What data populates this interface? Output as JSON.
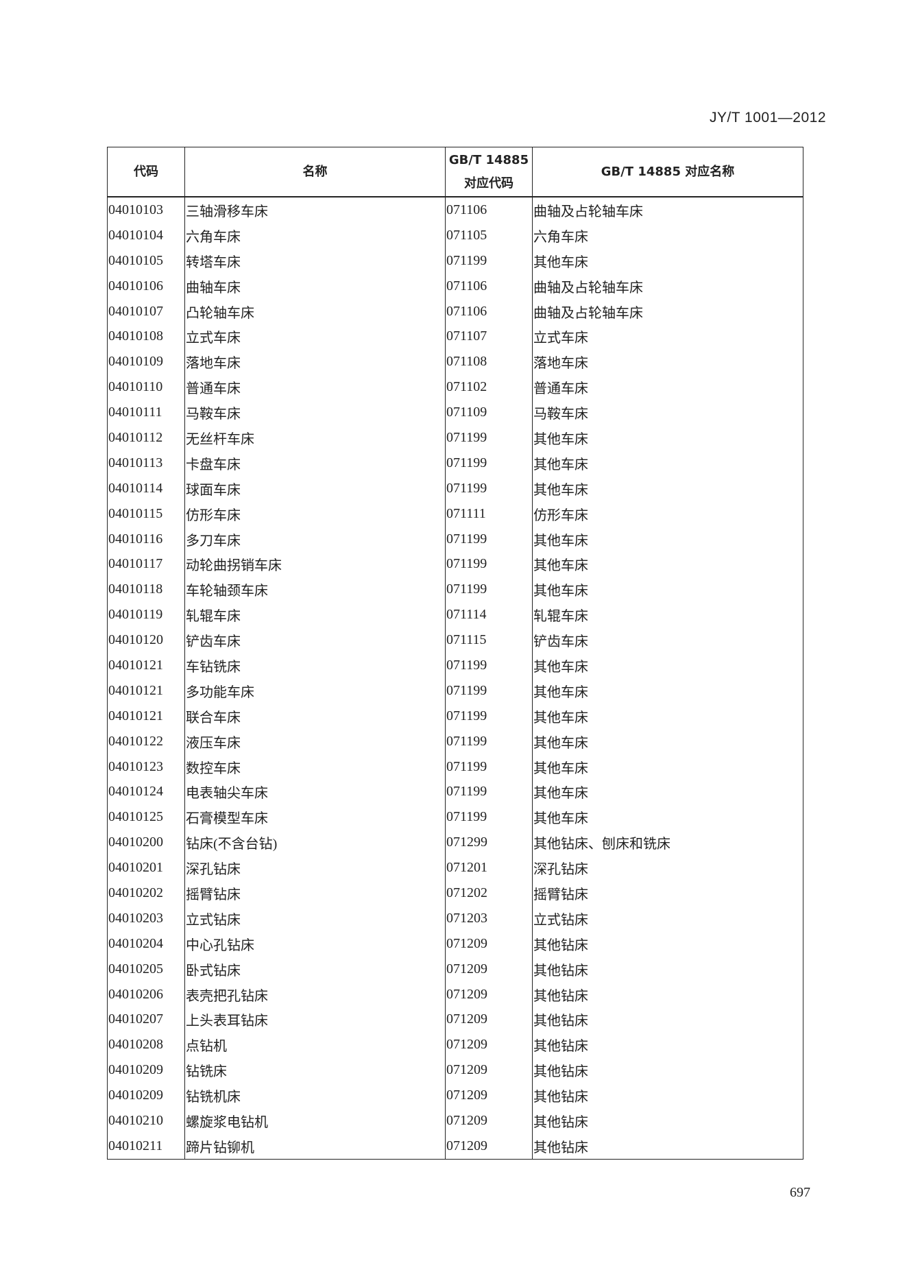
{
  "header": {
    "standard_no": "JY/T 1001—2012"
  },
  "table": {
    "columns": [
      "代码",
      "名称",
      "GB/T 14885\n对应代码",
      "GB/T 14885 对应名称"
    ],
    "column_code_line1": "GB/T 14885",
    "column_code_line2": "对应代码",
    "rows": [
      [
        "04010103",
        "三轴滑移车床",
        "071106",
        "曲轴及占轮轴车床"
      ],
      [
        "04010104",
        "六角车床",
        "071105",
        "六角车床"
      ],
      [
        "04010105",
        "转塔车床",
        "071199",
        "其他车床"
      ],
      [
        "04010106",
        "曲轴车床",
        "071106",
        "曲轴及占轮轴车床"
      ],
      [
        "04010107",
        "凸轮轴车床",
        "071106",
        "曲轴及占轮轴车床"
      ],
      [
        "04010108",
        "立式车床",
        "071107",
        "立式车床"
      ],
      [
        "04010109",
        "落地车床",
        "071108",
        "落地车床"
      ],
      [
        "04010110",
        "普通车床",
        "071102",
        "普通车床"
      ],
      [
        "04010111",
        "马鞍车床",
        "071109",
        "马鞍车床"
      ],
      [
        "04010112",
        "无丝杆车床",
        "071199",
        "其他车床"
      ],
      [
        "04010113",
        "卡盘车床",
        "071199",
        "其他车床"
      ],
      [
        "04010114",
        "球面车床",
        "071199",
        "其他车床"
      ],
      [
        "04010115",
        "仿形车床",
        "071111",
        "仿形车床"
      ],
      [
        "04010116",
        "多刀车床",
        "071199",
        "其他车床"
      ],
      [
        "04010117",
        "动轮曲拐销车床",
        "071199",
        "其他车床"
      ],
      [
        "04010118",
        "车轮轴颈车床",
        "071199",
        "其他车床"
      ],
      [
        "04010119",
        "轧辊车床",
        "071114",
        "轧辊车床"
      ],
      [
        "04010120",
        "铲齿车床",
        "071115",
        "铲齿车床"
      ],
      [
        "04010121",
        "车钻铣床",
        "071199",
        "其他车床"
      ],
      [
        "04010121",
        "多功能车床",
        "071199",
        "其他车床"
      ],
      [
        "04010121",
        "联合车床",
        "071199",
        "其他车床"
      ],
      [
        "04010122",
        "液压车床",
        "071199",
        "其他车床"
      ],
      [
        "04010123",
        "数控车床",
        "071199",
        "其他车床"
      ],
      [
        "04010124",
        "电表轴尖车床",
        "071199",
        "其他车床"
      ],
      [
        "04010125",
        "石膏模型车床",
        "071199",
        "其他车床"
      ],
      [
        "04010200",
        "钻床(不含台钻)",
        "071299",
        "其他钻床、刨床和铣床"
      ],
      [
        "04010201",
        "深孔钻床",
        "071201",
        "深孔钻床"
      ],
      [
        "04010202",
        "摇臂钻床",
        "071202",
        "摇臂钻床"
      ],
      [
        "04010203",
        "立式钻床",
        "071203",
        "立式钻床"
      ],
      [
        "04010204",
        "中心孔钻床",
        "071209",
        "其他钻床"
      ],
      [
        "04010205",
        "卧式钻床",
        "071209",
        "其他钻床"
      ],
      [
        "04010206",
        "表壳把孔钻床",
        "071209",
        "其他钻床"
      ],
      [
        "04010207",
        "上头表耳钻床",
        "071209",
        "其他钻床"
      ],
      [
        "04010208",
        "点钻机",
        "071209",
        "其他钻床"
      ],
      [
        "04010209",
        "钻铣床",
        "071209",
        "其他钻床"
      ],
      [
        "04010209",
        "钻铣机床",
        "071209",
        "其他钻床"
      ],
      [
        "04010210",
        "螺旋浆电钻机",
        "071209",
        "其他钻床"
      ],
      [
        "04010211",
        "蹄片钻铆机",
        "071209",
        "其他钻床"
      ]
    ]
  },
  "footer": {
    "page_number": "697"
  }
}
